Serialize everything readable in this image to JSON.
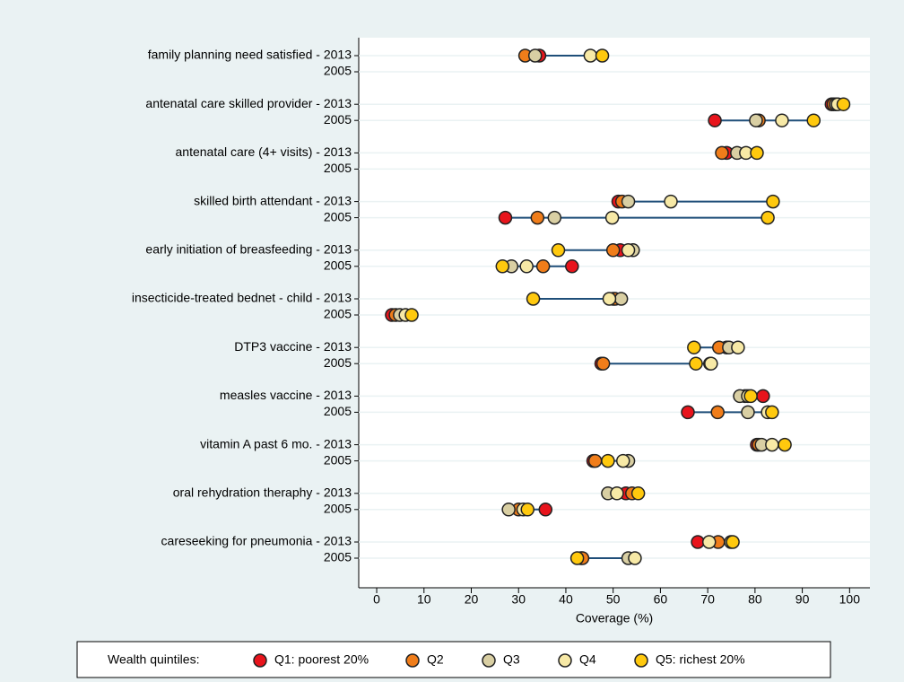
{
  "chart_data": {
    "type": "dot",
    "categories": [
      "family planning need satisfied - 2013",
      "2005",
      "antenatal care skilled provider - 2013",
      "2005",
      "antenatal care (4+ visits) - 2013",
      "2005",
      "skilled birth attendant - 2013",
      "2005",
      "early initiation of breasfeeding - 2013",
      "2005",
      "insecticide-treated bednet - child - 2013",
      "2005",
      "DTP3 vaccine - 2013",
      "2005",
      "measles vaccine - 2013",
      "2005",
      "vitamin A past 6 mo. - 2013",
      "2005",
      "oral rehydration theraphy - 2013",
      "2005",
      "careseeking for pneumonia - 2013",
      "2005"
    ],
    "series": [
      {
        "name": "Q1: poorest 20%",
        "color": "#e8141c",
        "values": [
          34.4,
          null,
          96.2,
          71.5,
          74.0,
          null,
          51.1,
          27.2,
          51.5,
          41.3,
          50.0,
          3.2,
          74.0,
          47.5,
          81.7,
          65.8,
          80.4,
          45.8,
          52.7,
          35.7,
          67.9,
          43.2
        ]
      },
      {
        "name": "Q2",
        "color": "#f07d1a",
        "values": [
          31.4,
          null,
          96.6,
          80.8,
          73.0,
          null,
          51.9,
          34.0,
          50.0,
          35.2,
          50.4,
          4.0,
          72.4,
          47.9,
          77.9,
          72.1,
          80.8,
          46.2,
          54.0,
          30.0,
          72.2,
          43.5
        ]
      },
      {
        "name": "Q3",
        "color": "#d9cfa3",
        "values": [
          33.5,
          null,
          97.1,
          80.2,
          76.2,
          null,
          53.2,
          37.6,
          54.2,
          28.5,
          51.7,
          4.9,
          74.5,
          70.5,
          76.8,
          78.5,
          81.4,
          53.2,
          48.9,
          27.9,
          74.9,
          53.2
        ]
      },
      {
        "name": "Q4",
        "color": "#f7e9a6",
        "values": [
          45.2,
          null,
          97.5,
          85.7,
          78.1,
          null,
          62.2,
          49.8,
          53.2,
          31.7,
          49.2,
          6.1,
          76.4,
          70.7,
          78.5,
          82.7,
          83.6,
          52.1,
          50.8,
          31.0,
          70.3,
          54.6
        ]
      },
      {
        "name": "Q5: richest 20%",
        "color": "#ffc90e",
        "values": [
          47.7,
          null,
          98.7,
          92.4,
          80.4,
          null,
          83.8,
          82.7,
          38.4,
          26.6,
          33.1,
          7.4,
          67.1,
          67.5,
          79.1,
          83.6,
          86.3,
          48.9,
          55.3,
          31.9,
          75.3,
          42.4
        ]
      }
    ],
    "x_label": "Coverage (%)",
    "legend_title": "Wealth quintiles:",
    "xlim": [
      -3.8,
      104.3
    ],
    "xticks": [
      0,
      10,
      20,
      30,
      40,
      50,
      60,
      70,
      80,
      90,
      100
    ],
    "line_color": "#1f4e79",
    "grid": true
  }
}
